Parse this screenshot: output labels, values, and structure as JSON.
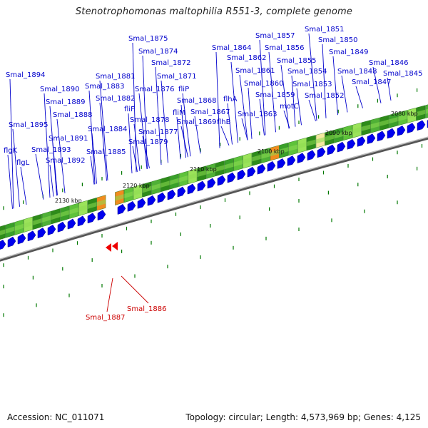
{
  "title": "Stenotrophomonas maltophilia R551-3, complete genome",
  "footer": {
    "accession": "Accession: NC_011071",
    "summary": "Topology: circular; Length: 4,573,969 bp; Genes: 4,125"
  },
  "colors": {
    "label_blue": "#0000cc",
    "label_red": "#cc0000",
    "gene_blue": "#0000ee",
    "gene_red": "#ee0000",
    "backbone": "#777777",
    "tick": "#007700",
    "track_dark": "#2e8b1a",
    "track_light": "#9be35a",
    "track_orange": "#f08c1e"
  },
  "scale_labels": [
    "2080 kbp",
    "2090 kbp",
    "2100 kbp",
    "2110 kbp",
    "2120 kbp",
    "2130 kbp"
  ],
  "blue_genes": [
    "Smal_1894",
    "flgK",
    "flgL",
    "Smal_1895",
    "Smal_1893",
    "Smal_1892",
    "Smal_1891",
    "Smal_1890",
    "Smal_1889",
    "Smal_1888",
    "Smal_1885",
    "Smal_1884",
    "Smal_1883",
    "Smal_1882",
    "Smal_1881",
    "fliF",
    "Smal_1879",
    "Smal_1878",
    "Smal_1877",
    "Smal_1876",
    "Smal_1875",
    "Smal_1874",
    "Smal_1872",
    "Smal_1871",
    "fliP",
    "fliM",
    "Smal_1868",
    "Smal_1867",
    "Smal_1869",
    "flhB",
    "Smal_1864",
    "flhA",
    "Smal_1863",
    "Smal_1862",
    "Smal_1861",
    "Smal_1860",
    "Smal_1859",
    "Smal_1857",
    "Smal_1856",
    "Smal_1855",
    "Smal_1854",
    "Smal_1853",
    "motC",
    "Smal_1852",
    "Smal_1851",
    "Smal_1850",
    "Smal_1849",
    "Smal_1848",
    "Smal_1847",
    "Smal_1846",
    "Smal_1845"
  ],
  "red_genes": [
    "Smal_1887",
    "Smal_1886"
  ]
}
